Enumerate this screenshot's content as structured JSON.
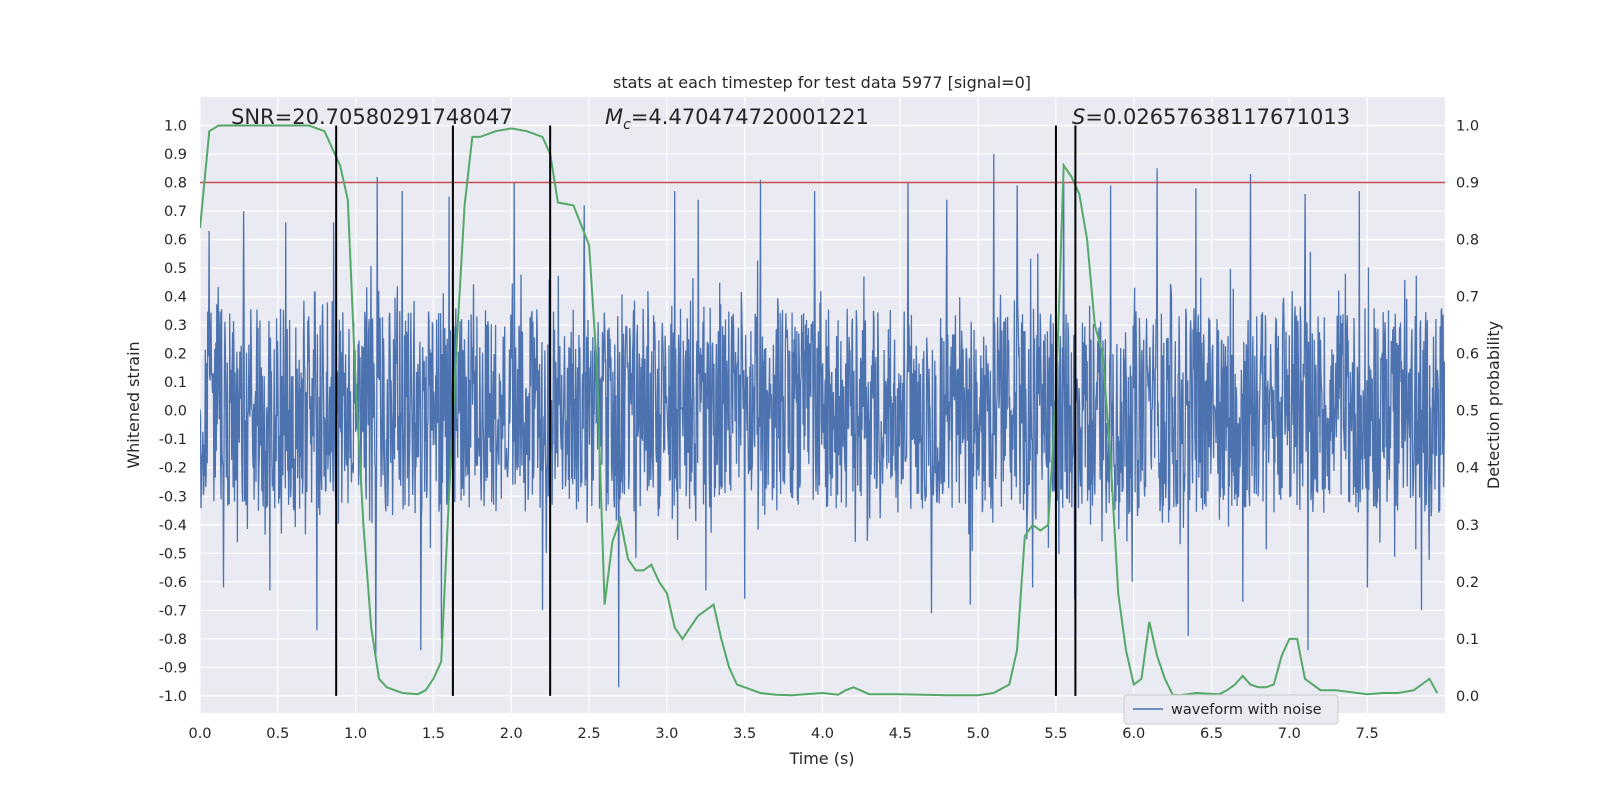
{
  "chart_data": {
    "type": "line",
    "title": "stats at each timestep for test data 5977 [signal=0]",
    "xlabel": "Time (s)",
    "ylabel_left": "Whitened strain",
    "ylabel_right": "Detection probability",
    "xlim": [
      0.0,
      8.0
    ],
    "ylim_left": [
      -1.06,
      1.1
    ],
    "ylim_right": [
      -0.03,
      1.05
    ],
    "x_ticks": [
      "0.0",
      "0.5",
      "1.0",
      "1.5",
      "2.0",
      "2.5",
      "3.0",
      "3.5",
      "4.0",
      "4.5",
      "5.0",
      "5.5",
      "6.0",
      "6.5",
      "7.0",
      "7.5"
    ],
    "y_left_ticks": [
      "1.0",
      "0.9",
      "0.8",
      "0.7",
      "0.6",
      "0.5",
      "0.4",
      "0.3",
      "0.2",
      "0.1",
      "0.0",
      "-0.1",
      "-0.2",
      "-0.3",
      "-0.4",
      "-0.5",
      "-0.6",
      "-0.7",
      "-0.8",
      "-0.9",
      "-1.0"
    ],
    "y_right_ticks": [
      "1.0",
      "0.9",
      "0.8",
      "0.7",
      "0.6",
      "0.5",
      "0.4",
      "0.3",
      "0.2",
      "0.1",
      "0.0"
    ],
    "grid": true,
    "legend_placement": "lower-right",
    "annotations": {
      "snr": "SNR=20.70580291748047",
      "mc_symbol": "M",
      "mc_sub": "c",
      "mc_value": "=4.470474720001221",
      "s_symbol": "S",
      "s_value": "=0.02657638117671013"
    },
    "threshold": {
      "value": 0.9,
      "axis": "right",
      "color": "#c44e52"
    },
    "vertical_lines_x": [
      0.875,
      1.625,
      2.25,
      5.5,
      5.625
    ],
    "series": [
      {
        "name": "waveform with noise",
        "axis": "left",
        "color": "#4c72b0",
        "envelope_note": "dense noise; band roughly within ±0.4 with spikes",
        "spikes": [
          [
            0.06,
            0.63
          ],
          [
            0.28,
            0.7
          ],
          [
            0.55,
            0.66
          ],
          [
            0.86,
            0.66
          ],
          [
            1.14,
            0.82
          ],
          [
            1.3,
            0.77
          ],
          [
            1.6,
            0.75
          ],
          [
            2.02,
            0.8
          ],
          [
            2.47,
            0.72
          ],
          [
            3.05,
            0.77
          ],
          [
            3.2,
            0.74
          ],
          [
            3.6,
            0.81
          ],
          [
            3.95,
            0.77
          ],
          [
            4.55,
            0.8
          ],
          [
            4.8,
            0.74
          ],
          [
            5.1,
            0.9
          ],
          [
            5.25,
            0.79
          ],
          [
            5.55,
            0.8
          ],
          [
            5.85,
            0.79
          ],
          [
            6.15,
            0.85
          ],
          [
            6.4,
            0.78
          ],
          [
            6.75,
            0.83
          ],
          [
            7.1,
            0.76
          ],
          [
            7.45,
            0.77
          ],
          [
            7.85,
            0.83
          ],
          [
            0.15,
            -0.62
          ],
          [
            0.45,
            -0.63
          ],
          [
            0.75,
            -0.77
          ],
          [
            1.13,
            -0.87
          ],
          [
            1.42,
            -0.84
          ],
          [
            1.55,
            -0.8
          ],
          [
            2.2,
            -0.7
          ],
          [
            2.69,
            -0.97
          ],
          [
            3.25,
            -0.63
          ],
          [
            3.5,
            -0.66
          ],
          [
            4.7,
            -0.71
          ],
          [
            4.95,
            -0.68
          ],
          [
            5.35,
            -0.62
          ],
          [
            5.62,
            -0.66
          ],
          [
            5.99,
            -0.6
          ],
          [
            6.35,
            -0.79
          ],
          [
            6.7,
            -0.67
          ],
          [
            7.12,
            -0.84
          ],
          [
            7.5,
            -0.62
          ],
          [
            7.85,
            -0.7
          ]
        ]
      },
      {
        "name": "",
        "axis": "right",
        "color": "#55a868",
        "x": [
          0.0,
          0.06,
          0.12,
          0.2,
          0.3,
          0.5,
          0.7,
          0.8,
          0.85,
          0.9,
          0.95,
          1.0,
          1.05,
          1.1,
          1.15,
          1.2,
          1.3,
          1.4,
          1.45,
          1.5,
          1.55,
          1.6,
          1.65,
          1.7,
          1.75,
          1.8,
          1.9,
          2.0,
          2.1,
          2.2,
          2.25,
          2.3,
          2.4,
          2.5,
          2.55,
          2.6,
          2.65,
          2.7,
          2.75,
          2.8,
          2.85,
          2.9,
          2.95,
          3.0,
          3.05,
          3.1,
          3.15,
          3.2,
          3.3,
          3.35,
          3.4,
          3.45,
          3.5,
          3.6,
          3.7,
          3.8,
          4.0,
          4.1,
          4.15,
          4.2,
          4.3,
          4.5,
          4.8,
          5.0,
          5.1,
          5.2,
          5.25,
          5.3,
          5.35,
          5.4,
          5.45,
          5.5,
          5.55,
          5.6,
          5.65,
          5.7,
          5.75,
          5.8,
          5.85,
          5.9,
          5.95,
          6.0,
          6.05,
          6.1,
          6.15,
          6.2,
          6.25,
          6.3,
          6.4,
          6.55,
          6.6,
          6.65,
          6.7,
          6.75,
          6.8,
          6.85,
          6.9,
          6.95,
          7.0,
          7.05,
          7.1,
          7.2,
          7.3,
          7.5,
          7.6,
          7.7,
          7.8,
          7.85,
          7.9,
          7.95
        ],
        "y": [
          0.82,
          0.99,
          1.0,
          1.0,
          1.0,
          1.0,
          1.0,
          0.99,
          0.96,
          0.93,
          0.87,
          0.55,
          0.3,
          0.12,
          0.03,
          0.015,
          0.005,
          0.003,
          0.01,
          0.03,
          0.06,
          0.35,
          0.62,
          0.86,
          0.98,
          0.98,
          0.99,
          0.995,
          0.99,
          0.98,
          0.95,
          0.865,
          0.86,
          0.79,
          0.58,
          0.16,
          0.27,
          0.31,
          0.24,
          0.22,
          0.22,
          0.23,
          0.2,
          0.18,
          0.12,
          0.1,
          0.12,
          0.14,
          0.16,
          0.1,
          0.05,
          0.02,
          0.015,
          0.005,
          0.002,
          0.001,
          0.005,
          0.002,
          0.01,
          0.015,
          0.003,
          0.003,
          0.001,
          0.001,
          0.005,
          0.02,
          0.08,
          0.28,
          0.3,
          0.29,
          0.3,
          0.52,
          0.93,
          0.91,
          0.88,
          0.8,
          0.65,
          0.6,
          0.42,
          0.18,
          0.08,
          0.02,
          0.03,
          0.13,
          0.07,
          0.03,
          0.002,
          0.001,
          0.005,
          0.003,
          0.01,
          0.02,
          0.035,
          0.02,
          0.015,
          0.015,
          0.02,
          0.07,
          0.1,
          0.1,
          0.03,
          0.01,
          0.01,
          0.003,
          0.005,
          0.005,
          0.01,
          0.02,
          0.03,
          0.005
        ]
      }
    ]
  }
}
